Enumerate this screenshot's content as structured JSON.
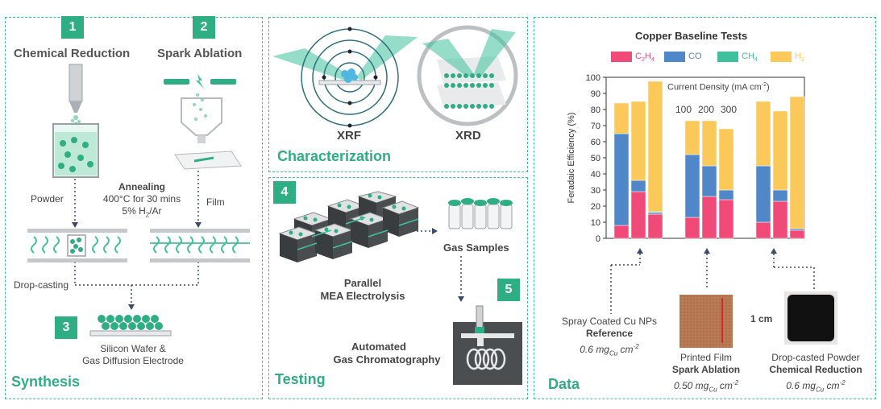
{
  "synthesis": {
    "title": "Synthesis",
    "step1": "1",
    "step2": "2",
    "step3": "3",
    "chemical_reduction": "Chemical Reduction",
    "spark_ablation": "Spark Ablation",
    "annealing": "Annealing",
    "annealing_temp": "400°C for 30 mins",
    "annealing_gas": "5% H",
    "annealing_gas_sub": "2",
    "annealing_gas_rest": "/Ar",
    "powder": "Powder",
    "film": "Film",
    "drop_casting": "Drop-casting",
    "substrate_line1": "Silicon Wafer &",
    "substrate_line2": "Gas Diffusion Electrode"
  },
  "characterization": {
    "title": "Characterization",
    "xrf": "XRF",
    "xrd": "XRD"
  },
  "testing": {
    "title": "Testing",
    "step4": "4",
    "step5": "5",
    "mea_line1": "Parallel",
    "mea_line2": "MEA Electrolysis",
    "gas_samples": "Gas Samples",
    "gc_line1": "Automated",
    "gc_line2": "Gas Chromatography"
  },
  "data": {
    "title": "Data",
    "sample1_line1": "Spray Coated Cu NPs",
    "sample1_line2": "Reference",
    "sample1_loading": "0.6 mg",
    "sample2_line1": "Printed Film",
    "sample2_line2": "Spark Ablation",
    "sample2_loading": "0.50 mg",
    "sample3_line1": "Drop-casted Powder",
    "sample3_line2": "Chemical Reduction",
    "sample3_loading": "0.6 mg",
    "loading_sub": "Cu",
    "loading_unit": " cm",
    "loading_sup": "-2",
    "scale_label": "1 cm",
    "colors": {
      "C2H4": "#ef4a78",
      "CO": "#4f87c9",
      "CH4": "#3ec19c",
      "H2": "#fbc95a"
    }
  },
  "chart_data": {
    "type": "bar",
    "stacked": true,
    "title": "Copper Baseline Tests",
    "ylabel": "Feradaic Efficiency (%)",
    "ylim": [
      0,
      100
    ],
    "yticks": [
      0,
      10,
      20,
      30,
      40,
      50,
      60,
      70,
      80,
      90,
      100
    ],
    "annotation": "Current Density (mA cm",
    "annotation_sup": "-2",
    "annotation_end": ")",
    "current_densities": [
      "100",
      "200",
      "300"
    ],
    "legend": [
      {
        "name": "C",
        "sub": "2",
        "name2": "H",
        "sub2": "4",
        "key": "C2H4"
      },
      {
        "name": "CO",
        "key": "CO"
      },
      {
        "name": "CH",
        "sub": "4",
        "key": "CH4"
      },
      {
        "name": "H",
        "sub": "2",
        "key": "H2"
      }
    ],
    "groups": [
      "Reference",
      "Spark Ablation",
      "Chemical Reduction"
    ],
    "bars": [
      {
        "group": 0,
        "density": 100,
        "C2H4": 8,
        "CO": 57,
        "CH4": 0,
        "H2": 19
      },
      {
        "group": 0,
        "density": 200,
        "C2H4": 29,
        "CO": 7,
        "CH4": 0,
        "H2": 49
      },
      {
        "group": 0,
        "density": 300,
        "C2H4": 15,
        "CO": 1,
        "CH4": 0.5,
        "H2": 81
      },
      {
        "group": 1,
        "density": 100,
        "C2H4": 13,
        "CO": 39,
        "CH4": 0,
        "H2": 21
      },
      {
        "group": 1,
        "density": 200,
        "C2H4": 26,
        "CO": 19,
        "CH4": 0,
        "H2": 28
      },
      {
        "group": 1,
        "density": 300,
        "C2H4": 24,
        "CO": 6,
        "CH4": 0,
        "H2": 38
      },
      {
        "group": 2,
        "density": 100,
        "C2H4": 10,
        "CO": 35,
        "CH4": 0,
        "H2": 40
      },
      {
        "group": 2,
        "density": 200,
        "C2H4": 23,
        "CO": 7,
        "CH4": 0,
        "H2": 49
      },
      {
        "group": 2,
        "density": 300,
        "C2H4": 5,
        "CO": 1,
        "CH4": 0,
        "H2": 82
      }
    ]
  }
}
